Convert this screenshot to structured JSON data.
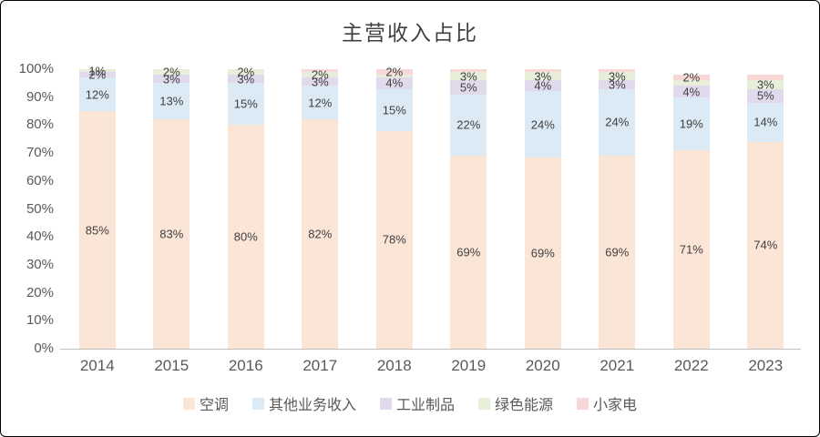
{
  "chart_data": {
    "type": "bar",
    "stacked": true,
    "title": "主营收入占比",
    "categories": [
      "2014",
      "2015",
      "2016",
      "2017",
      "2018",
      "2019",
      "2020",
      "2021",
      "2022",
      "2023"
    ],
    "y_ticks": [
      "0%",
      "10%",
      "20%",
      "30%",
      "40%",
      "50%",
      "60%",
      "70%",
      "80%",
      "90%",
      "100%"
    ],
    "ylim": [
      0,
      100
    ],
    "grid": false,
    "legend_position": "bottom",
    "text_color": "#404040",
    "tick_label_color": "#595959",
    "axis_color": "#BFBFBF",
    "series": [
      {
        "name": "空调",
        "slug": "air-conditioning",
        "color": "#FBE5D6",
        "values": [
          85,
          83,
          80,
          82,
          78,
          69,
          69,
          69,
          71,
          74
        ],
        "labels": [
          "85%",
          "83%",
          "80%",
          "82%",
          "78%",
          "69%",
          "69%",
          "69%",
          "71%",
          "74%"
        ]
      },
      {
        "name": "其他业务收入",
        "slug": "other-business-income",
        "color": "#DBEAF5",
        "values": [
          12,
          13,
          15,
          12,
          15,
          22,
          24,
          24,
          19,
          14
        ],
        "labels": [
          "12%",
          "13%",
          "15%",
          "12%",
          "15%",
          "22%",
          "24%",
          "24%",
          "19%",
          "14%"
        ]
      },
      {
        "name": "工业制品",
        "slug": "industrial-products",
        "color": "#E0DAEC",
        "values": [
          2,
          3,
          3,
          3,
          4,
          5,
          4,
          3,
          4,
          5
        ],
        "labels": [
          "2%",
          "3%",
          "3%",
          "3%",
          "4%",
          "5%",
          "4%",
          "3%",
          "4%",
          "5%"
        ]
      },
      {
        "name": "绿色能源",
        "slug": "green-energy",
        "color": "#E7EFDB",
        "values": [
          1,
          2,
          2,
          2,
          1,
          3,
          3,
          3,
          2,
          3
        ],
        "labels": [
          "1%",
          "2%",
          "2%",
          "2%",
          "",
          "3%",
          "3%",
          "3%",
          "",
          "3%"
        ]
      },
      {
        "name": "小家电",
        "slug": "small-appliances",
        "color": "#F8D8D6",
        "values": [
          0,
          0,
          0,
          1,
          2,
          1,
          1,
          1,
          2,
          2
        ],
        "labels": [
          "",
          "",
          "",
          "",
          "2%",
          "",
          "",
          "",
          "2%",
          ""
        ]
      }
    ]
  }
}
